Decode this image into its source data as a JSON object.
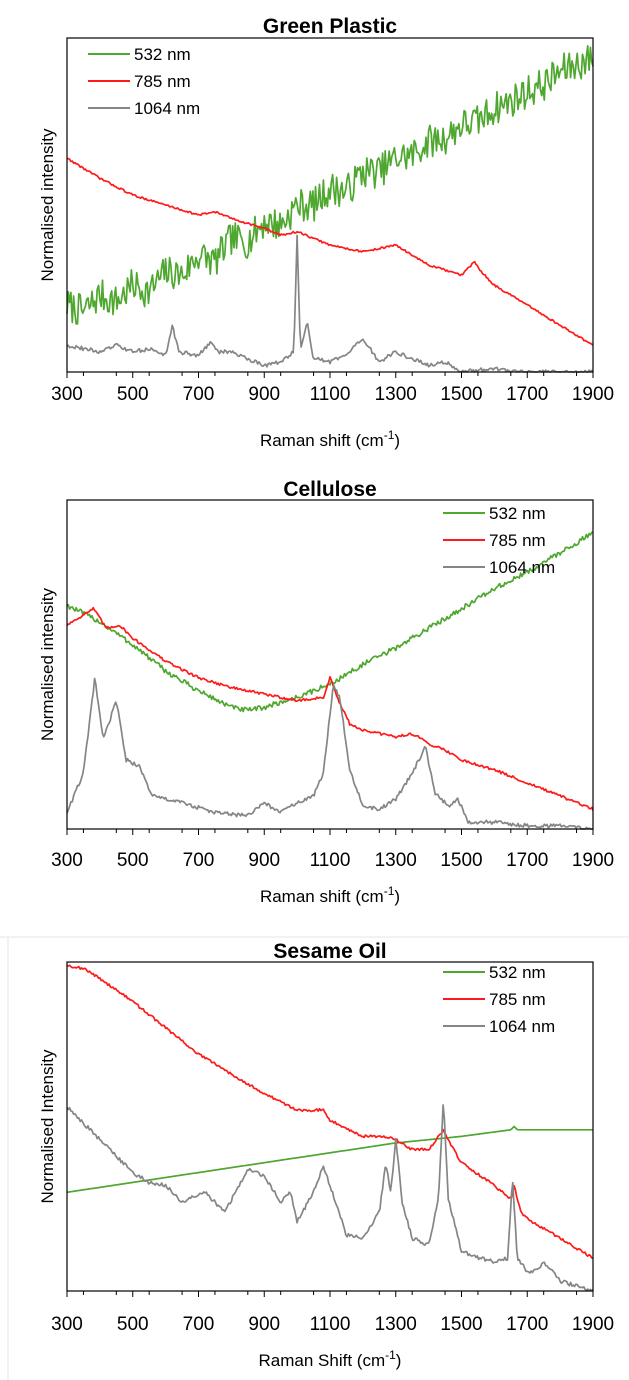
{
  "chart_data": [
    {
      "type": "line",
      "title": "Green Plastic",
      "xlabel": "Raman shift (cm-1)",
      "ylabel": "Normalised intensity",
      "xlim": [
        300,
        1900
      ],
      "xticks": [
        300,
        500,
        700,
        900,
        1100,
        1300,
        1500,
        1700,
        1900
      ],
      "ylim": [
        0,
        1
      ],
      "grid": false,
      "legend_position": "top-left",
      "series": [
        {
          "name": "532 nm",
          "color": "#4ea72e",
          "x": [
            300,
            350,
            400,
            450,
            500,
            550,
            600,
            650,
            700,
            750,
            800,
            850,
            900,
            950,
            1000,
            1050,
            1100,
            1150,
            1200,
            1250,
            1300,
            1350,
            1400,
            1450,
            1500,
            1550,
            1600,
            1650,
            1700,
            1750,
            1800,
            1850,
            1900
          ],
          "y": [
            0.2,
            0.18,
            0.23,
            0.21,
            0.26,
            0.24,
            0.3,
            0.29,
            0.35,
            0.33,
            0.4,
            0.39,
            0.45,
            0.44,
            0.5,
            0.5,
            0.55,
            0.54,
            0.6,
            0.6,
            0.64,
            0.65,
            0.69,
            0.7,
            0.74,
            0.75,
            0.79,
            0.81,
            0.84,
            0.86,
            0.9,
            0.92,
            0.94
          ],
          "noise": 0.05
        },
        {
          "name": "785 nm",
          "color": "#ff1a1a",
          "x": [
            300,
            400,
            500,
            600,
            700,
            750,
            800,
            900,
            950,
            1000,
            1050,
            1100,
            1200,
            1300,
            1350,
            1400,
            1500,
            1540,
            1560,
            1600,
            1700,
            1800,
            1900
          ],
          "y": [
            0.64,
            0.58,
            0.53,
            0.5,
            0.47,
            0.48,
            0.46,
            0.43,
            0.41,
            0.42,
            0.4,
            0.38,
            0.36,
            0.38,
            0.35,
            0.32,
            0.29,
            0.33,
            0.3,
            0.26,
            0.2,
            0.14,
            0.08
          ],
          "noise": 0.003
        },
        {
          "name": "1064 nm",
          "color": "#858585",
          "x": [
            300,
            400,
            450,
            500,
            550,
            600,
            620,
            640,
            700,
            740,
            760,
            800,
            850,
            900,
            950,
            990,
            1000,
            1010,
            1030,
            1050,
            1100,
            1150,
            1200,
            1250,
            1300,
            1400,
            1450,
            1500,
            1600,
            1700,
            1800,
            1900
          ],
          "y": [
            0.08,
            0.06,
            0.08,
            0.06,
            0.07,
            0.05,
            0.14,
            0.06,
            0.05,
            0.09,
            0.06,
            0.06,
            0.04,
            0.02,
            0.03,
            0.06,
            0.41,
            0.06,
            0.15,
            0.04,
            0.03,
            0.05,
            0.1,
            0.03,
            0.06,
            0.02,
            0.03,
            0.0,
            0.01,
            0.0,
            0.0,
            0.0
          ],
          "noise": 0.006
        }
      ]
    },
    {
      "type": "line",
      "title": "Cellulose",
      "xlabel": "Raman shift (cm-1)",
      "ylabel": "Normalised intensity",
      "xlim": [
        300,
        1900
      ],
      "xticks": [
        300,
        500,
        700,
        900,
        1100,
        1300,
        1500,
        1700,
        1900
      ],
      "ylim": [
        0,
        1
      ],
      "grid": false,
      "legend_position": "top-right",
      "series": [
        {
          "name": "532 nm",
          "color": "#4ea72e",
          "x": [
            300,
            400,
            500,
            600,
            700,
            800,
            850,
            900,
            1000,
            1100,
            1200,
            1300,
            1400,
            1500,
            1600,
            1700,
            1800,
            1900
          ],
          "y": [
            0.68,
            0.63,
            0.56,
            0.48,
            0.42,
            0.37,
            0.36,
            0.37,
            0.4,
            0.44,
            0.5,
            0.55,
            0.61,
            0.67,
            0.73,
            0.78,
            0.84,
            0.9
          ],
          "noise": 0.008
        },
        {
          "name": "785 nm",
          "color": "#ff1a1a",
          "x": [
            300,
            380,
            420,
            460,
            500,
            600,
            700,
            800,
            900,
            1000,
            1080,
            1100,
            1130,
            1160,
            1200,
            1300,
            1350,
            1400,
            1450,
            1500,
            1600,
            1700,
            1800,
            1900
          ],
          "y": [
            0.62,
            0.67,
            0.61,
            0.62,
            0.58,
            0.51,
            0.46,
            0.43,
            0.41,
            0.39,
            0.4,
            0.46,
            0.38,
            0.32,
            0.3,
            0.28,
            0.29,
            0.26,
            0.24,
            0.21,
            0.18,
            0.14,
            0.1,
            0.06
          ],
          "noise": 0.004
        },
        {
          "name": "1064 nm",
          "color": "#858585",
          "x": [
            300,
            350,
            385,
            410,
            450,
            480,
            520,
            560,
            650,
            750,
            850,
            900,
            950,
            1000,
            1050,
            1080,
            1110,
            1130,
            1160,
            1200,
            1250,
            1300,
            1350,
            1390,
            1420,
            1460,
            1490,
            1520,
            1600,
            1700,
            1800,
            1900
          ],
          "y": [
            0.05,
            0.17,
            0.46,
            0.27,
            0.39,
            0.21,
            0.19,
            0.1,
            0.08,
            0.05,
            0.04,
            0.08,
            0.05,
            0.08,
            0.1,
            0.17,
            0.44,
            0.4,
            0.18,
            0.07,
            0.06,
            0.09,
            0.17,
            0.25,
            0.11,
            0.07,
            0.09,
            0.02,
            0.02,
            0.01,
            0.01,
            0.0
          ],
          "noise": 0.006
        }
      ]
    },
    {
      "type": "line",
      "title": "Sesame Oil",
      "xlabel": "Raman Shift (cm-1)",
      "ylabel": "Normalised Intensity",
      "xlim": [
        300,
        1900
      ],
      "xticks": [
        300,
        500,
        700,
        900,
        1100,
        1300,
        1500,
        1700,
        1900
      ],
      "ylim": [
        0,
        1
      ],
      "grid": false,
      "legend_position": "top-right",
      "series": [
        {
          "name": "532 nm",
          "color": "#4ea72e",
          "x": [
            300,
            500,
            700,
            900,
            1100,
            1300,
            1500,
            1650,
            1660,
            1670,
            1900
          ],
          "y": [
            0.3,
            0.33,
            0.36,
            0.39,
            0.42,
            0.45,
            0.47,
            0.49,
            0.5,
            0.49,
            0.49
          ],
          "noise": 0.0
        },
        {
          "name": "785 nm",
          "color": "#ff1a1a",
          "x": [
            300,
            350,
            400,
            500,
            600,
            700,
            800,
            900,
            1000,
            1080,
            1100,
            1200,
            1260,
            1300,
            1350,
            1400,
            1445,
            1470,
            1500,
            1600,
            1650,
            1660,
            1680,
            1700,
            1800,
            1900
          ],
          "y": [
            0.99,
            0.98,
            0.95,
            0.88,
            0.8,
            0.72,
            0.66,
            0.6,
            0.55,
            0.55,
            0.52,
            0.47,
            0.47,
            0.46,
            0.43,
            0.43,
            0.49,
            0.44,
            0.39,
            0.32,
            0.28,
            0.32,
            0.24,
            0.22,
            0.16,
            0.1
          ],
          "noise": 0.004
        },
        {
          "name": "1064 nm",
          "color": "#858585",
          "x": [
            300,
            400,
            500,
            550,
            600,
            650,
            720,
            780,
            850,
            900,
            950,
            980,
            1000,
            1050,
            1080,
            1100,
            1150,
            1200,
            1250,
            1270,
            1285,
            1300,
            1320,
            1350,
            1400,
            1430,
            1445,
            1460,
            1500,
            1550,
            1600,
            1640,
            1655,
            1670,
            1700,
            1730,
            1750,
            1800,
            1900
          ],
          "y": [
            0.56,
            0.46,
            0.36,
            0.33,
            0.32,
            0.27,
            0.3,
            0.24,
            0.37,
            0.35,
            0.27,
            0.3,
            0.21,
            0.3,
            0.38,
            0.32,
            0.17,
            0.16,
            0.24,
            0.39,
            0.3,
            0.46,
            0.27,
            0.16,
            0.14,
            0.28,
            0.58,
            0.28,
            0.12,
            0.1,
            0.09,
            0.1,
            0.34,
            0.1,
            0.06,
            0.06,
            0.09,
            0.03,
            0.0
          ],
          "noise": 0.006
        }
      ]
    }
  ]
}
